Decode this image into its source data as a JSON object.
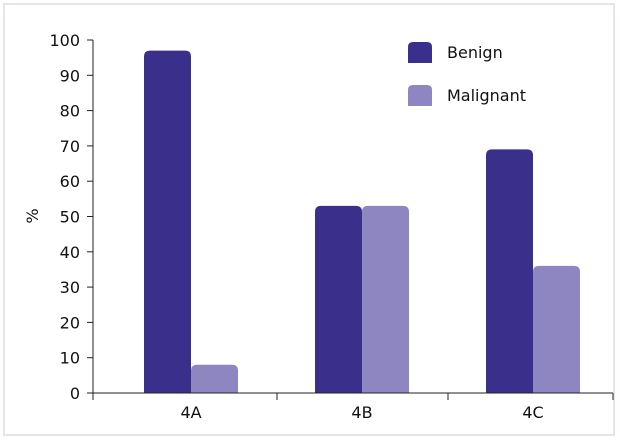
{
  "chart_data": {
    "type": "bar",
    "categories": [
      "4A",
      "4B",
      "4C"
    ],
    "series": [
      {
        "name": "Benign",
        "values": [
          97,
          53,
          69
        ],
        "color": "#3b2f8c"
      },
      {
        "name": "Malignant",
        "values": [
          8,
          53,
          36
        ],
        "color": "#8e86c1"
      }
    ],
    "xlabel": "",
    "ylabel": "%",
    "ylim": [
      0,
      100
    ],
    "yticks": [
      0,
      10,
      20,
      30,
      40,
      50,
      60,
      70,
      80,
      90,
      100
    ],
    "grid": false,
    "legend_position": "top-right"
  }
}
